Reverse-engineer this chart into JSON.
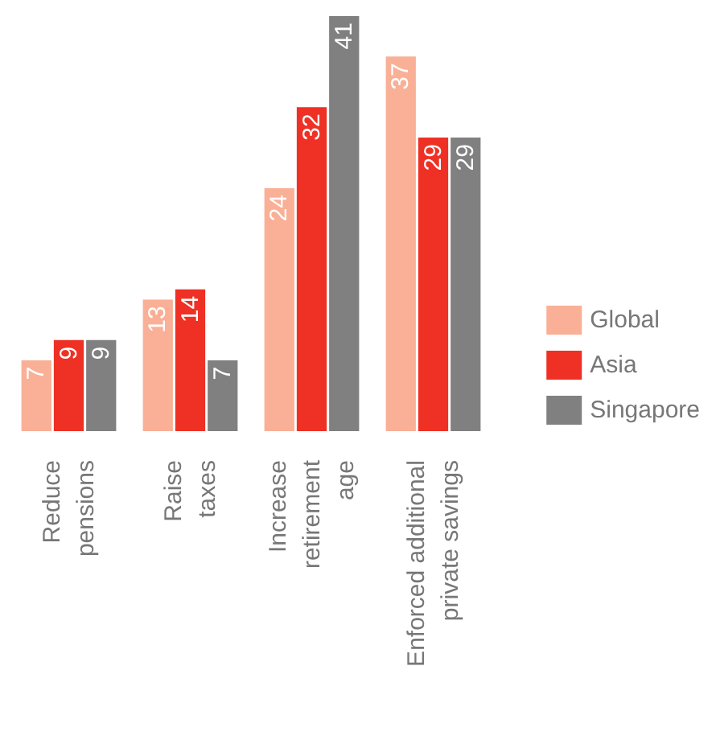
{
  "chart_data": {
    "type": "bar",
    "categories": [
      "Reduce\npensions",
      "Raise\ntaxes",
      "Increase\nretirement\nage",
      "Enforced additional\nprivate savings"
    ],
    "series": [
      {
        "name": "Global",
        "color": "#f9b096",
        "values": [
          7,
          13,
          24,
          37
        ]
      },
      {
        "name": "Asia",
        "color": "#ee3124",
        "values": [
          9,
          14,
          32,
          29
        ]
      },
      {
        "name": "Singapore",
        "color": "#808080",
        "values": [
          9,
          7,
          41,
          29
        ]
      }
    ],
    "data_labels": true,
    "legend": "right"
  }
}
